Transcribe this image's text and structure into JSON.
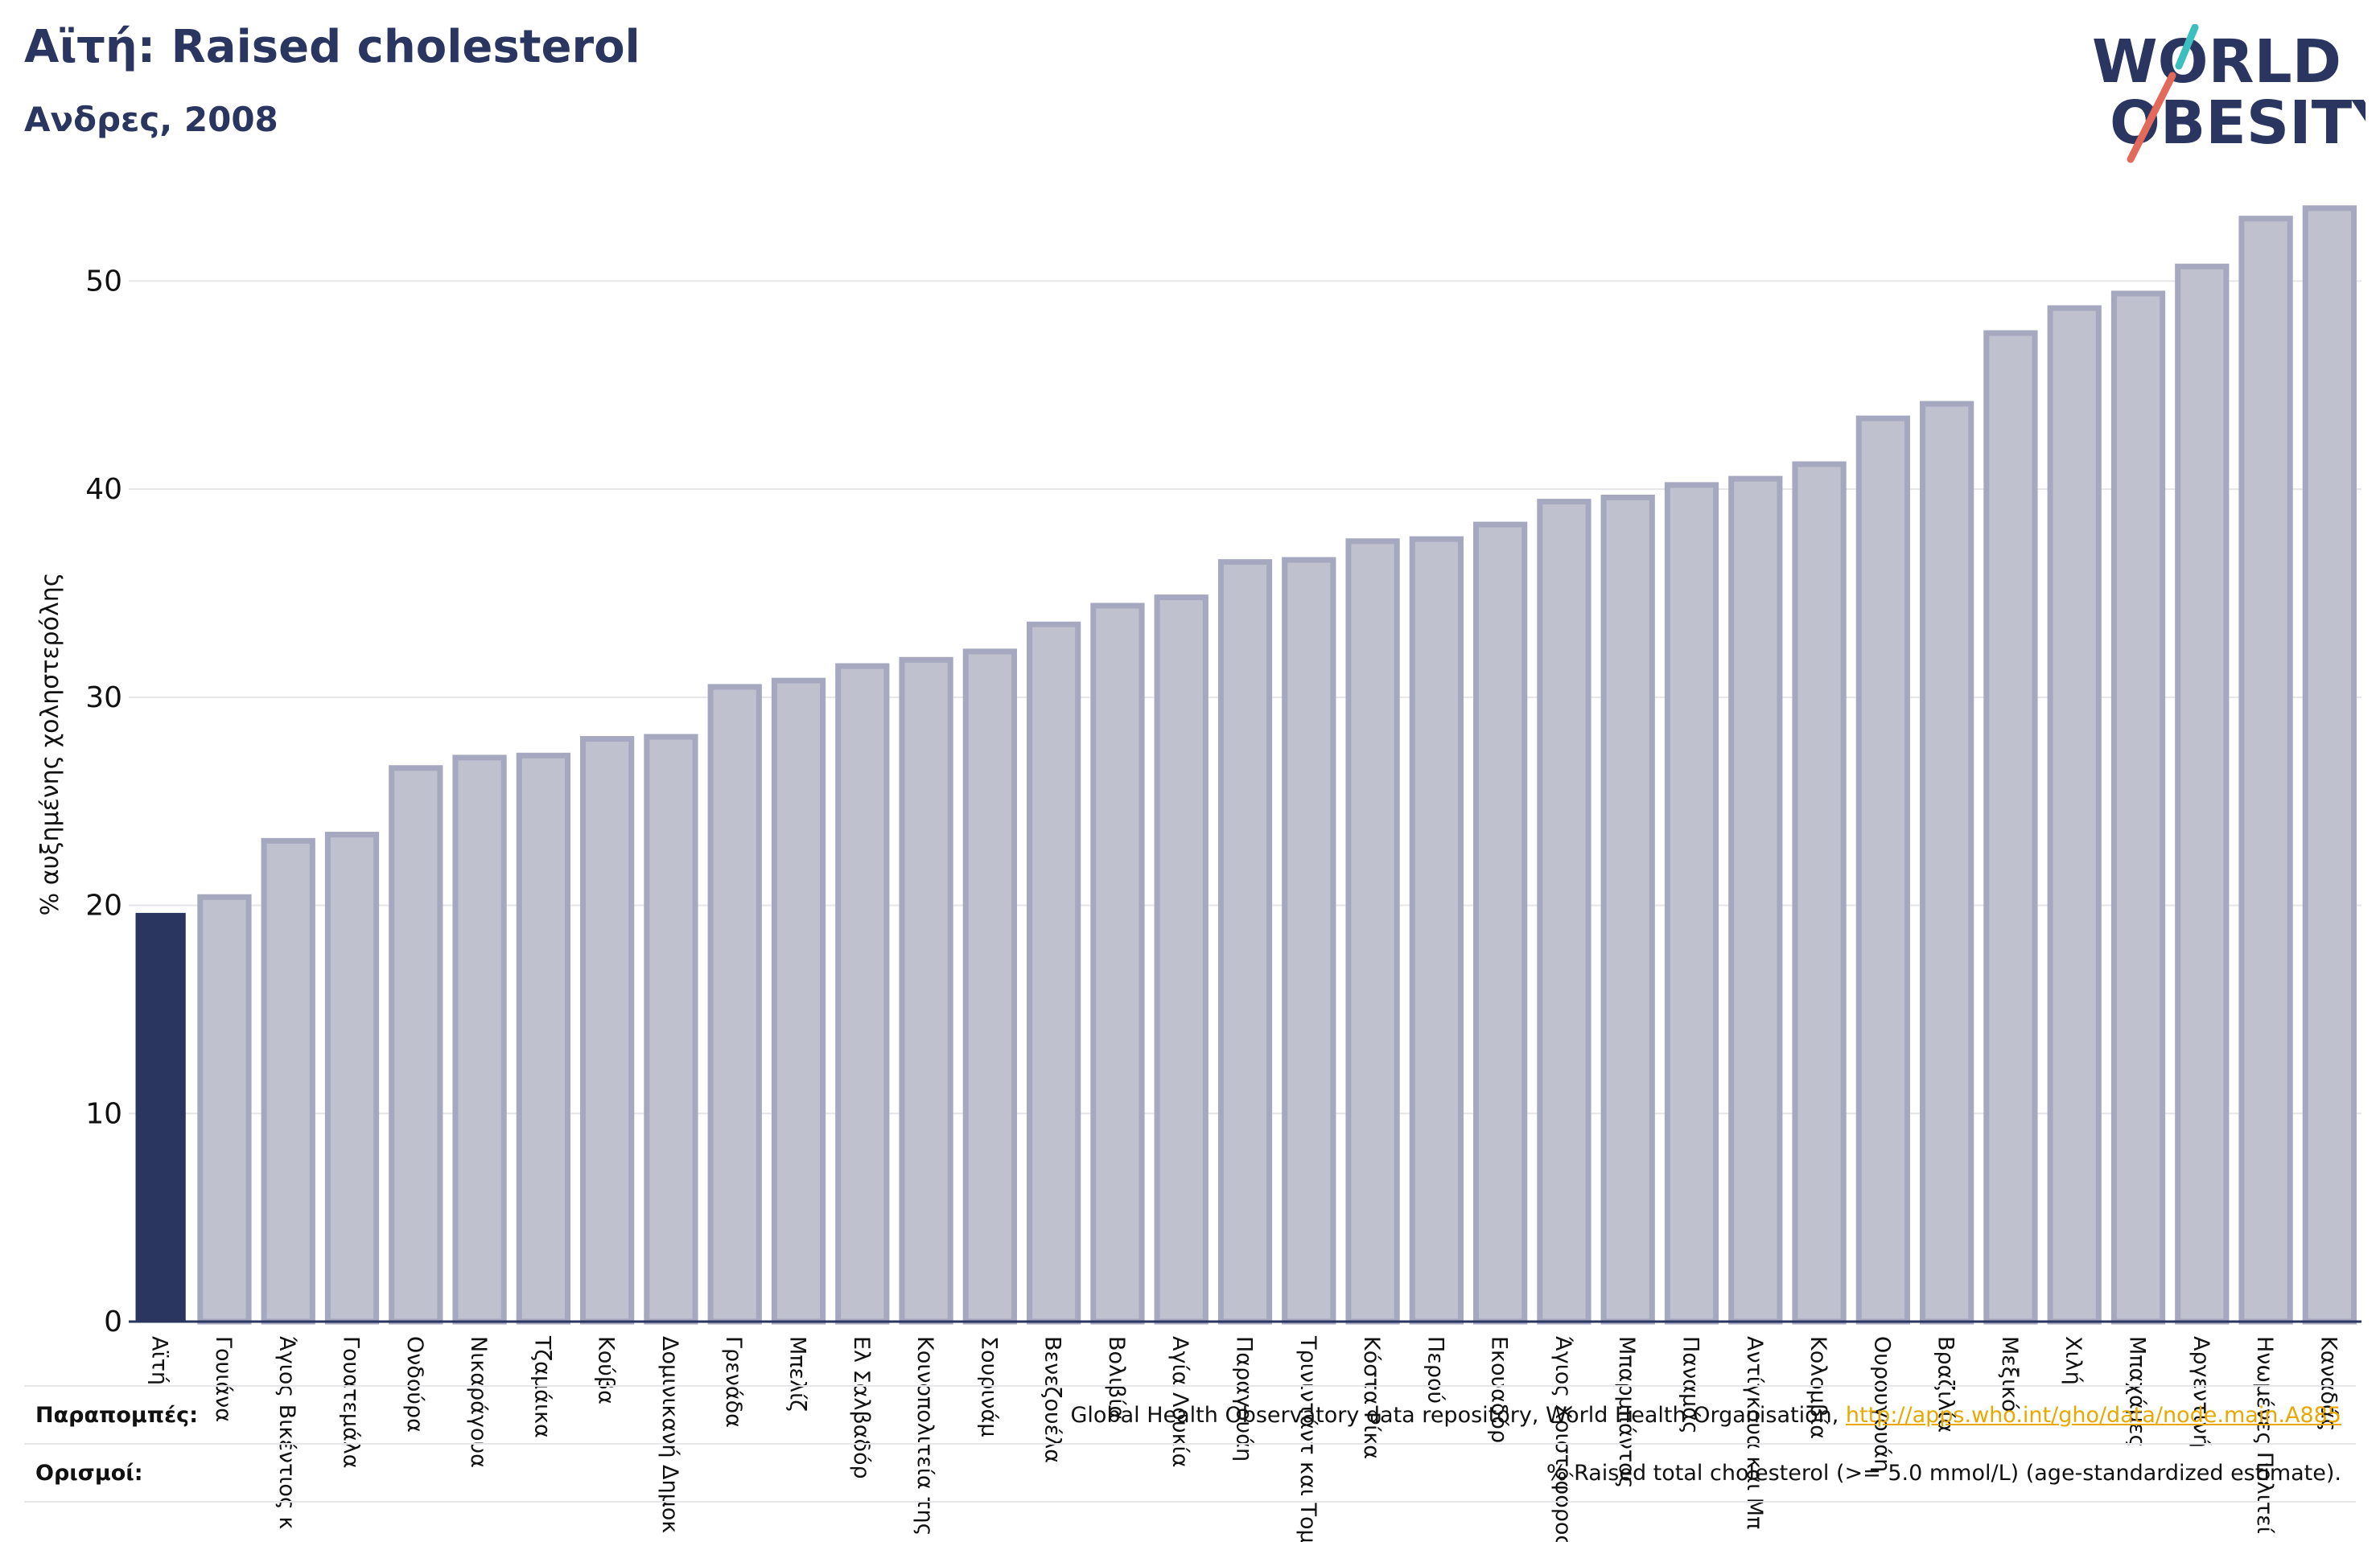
{
  "header": {
    "title": "Αϊτή: Raised cholesterol",
    "subtitle": "Ανδρες, 2008"
  },
  "logo": {
    "line1": "WORLD",
    "line2": "OBESITY",
    "colors": {
      "text": "#2a3560",
      "slash_teal": "#3bbfbf",
      "slash_coral": "#e36a5a"
    }
  },
  "footer": {
    "references_label": "Παραπομπές:",
    "references_text": "Global Health Observatory data repository, World Health Organisation,",
    "references_link": "http://apps.who.int/gho/data/node.main.A885",
    "definitions_label": "Ορισμοί:",
    "definitions_text": "% Raised total cholesterol (>= 5.0 mmol/L) (age-standardized estimate)."
  },
  "colors": {
    "highlight": "#2a3560",
    "bar": "#bfc1cf",
    "bar_stroke": "#a5a8bf",
    "grid": "#e6e6ea",
    "axis": "#2a3560"
  },
  "chart_data": {
    "type": "bar",
    "title": "Αϊτή: Raised cholesterol",
    "subtitle": "Ανδρες, 2008",
    "xlabel": "",
    "ylabel": "% αυξημένης χοληστερόλης",
    "ylim": [
      0,
      55
    ],
    "yticks": [
      0,
      10,
      20,
      30,
      40,
      50
    ],
    "grid": true,
    "highlight_category": "Αϊτή",
    "categories": [
      "Αϊτή",
      "Γουιάνα",
      "Άγιος Βικέντιος και Γρεναδίνες",
      "Γουατεμάλα",
      "Ονδούρα",
      "Νικαράγουα",
      "Τζαμάικα",
      "Κούβα",
      "Δομινικανή Δημοκρατία",
      "Γρενάδα",
      "Μπελίζ",
      "Ελ Σαλβαδόρ",
      "Κοινοπολιτεία της Δομινίκας",
      "Σουρινάμ",
      "Βενεζουέλα",
      "Βολιβία",
      "Αγία Λουκία",
      "Παραγουάη",
      "Τρινιντάντ και Τομπάγκο",
      "Κόστα Ρίκα",
      "Περού",
      "Εκουαδόρ",
      "Άγιος Χριστόφορος και Νέβις",
      "Μπαρμπάντος",
      "Παναμάς",
      "Αντίγκουα και Μπαρμπούντα",
      "Κολομβία",
      "Ουρουγουάη",
      "Βραζιλία",
      "Μεξικό",
      "Χιλή",
      "Μπαχάμες",
      "Αργεντινή",
      "Ηνωμένες Πολιτείες",
      "Καναδάς"
    ],
    "tick_labels": [
      "Αϊτή",
      "Γουιάνα",
      "Άγιος Βικέντιος κ",
      "Γουατεμάλα",
      "Ονδούρα",
      "Νικαράγουα",
      "Τζαμάικα",
      "Κούβα",
      "Δομινικανή Δημοκ",
      "Γρενάδα",
      "Μπελίζ",
      "Ελ Σαλβαδόρ",
      "Κοινοπολιτεία της",
      "Σουρινάμ",
      "Βενεζουέλα",
      "Βολιβία",
      "Αγία Λουκία",
      "Παραγουάη",
      "Τρινιντάντ και Τομ",
      "Κόστα Ρίκα",
      "Περού",
      "Εκουαδόρ",
      "Άγιος Χριστόφορος",
      "Μπαρμπάντος",
      "Παναμάς",
      "Αντίγκουα και Μπ",
      "Κολομβία",
      "Ουρουγουάη",
      "Βραζιλία",
      "Μεξικό",
      "Χιλή",
      "Μπαχάμες",
      "Αργεντινή",
      "Ηνωμένες Πολιτεί",
      "Καναδάς"
    ],
    "values": [
      19.6,
      20.4,
      23.1,
      23.4,
      26.6,
      27.1,
      27.2,
      28.0,
      28.1,
      30.5,
      30.8,
      31.5,
      31.8,
      32.2,
      33.5,
      34.4,
      34.8,
      36.5,
      36.6,
      37.5,
      37.6,
      38.3,
      39.4,
      39.6,
      40.2,
      40.5,
      41.2,
      43.4,
      44.1,
      47.5,
      48.7,
      49.4,
      50.7,
      53.0,
      53.5
    ]
  }
}
